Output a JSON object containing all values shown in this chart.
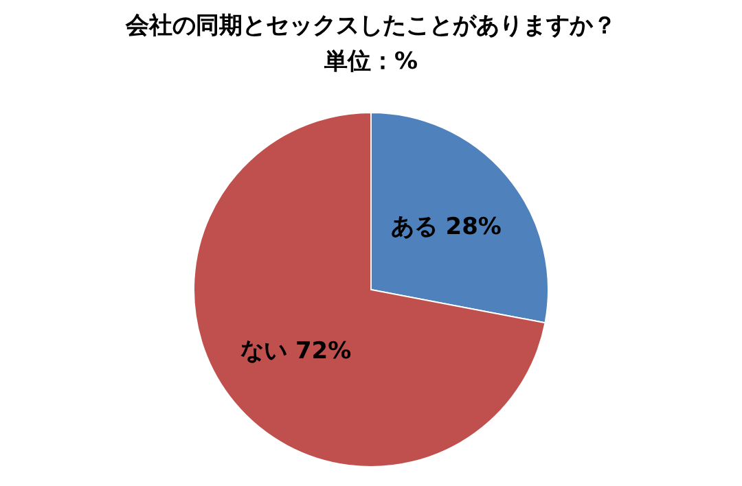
{
  "chart_data": {
    "type": "pie",
    "title": "会社の同期とセックスしたことがありますか？",
    "subtitle": "単位：%",
    "categories": [
      "ある",
      "ない"
    ],
    "values": [
      28,
      72
    ],
    "value_labels": [
      "28%",
      "72%"
    ],
    "colors": [
      "#4f81bd",
      "#c0504d"
    ]
  }
}
